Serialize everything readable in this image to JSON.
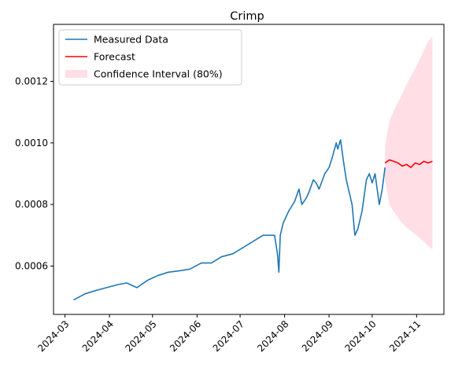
{
  "chart_data": {
    "type": "line",
    "title": "Crimp",
    "xlabel": "",
    "ylabel": "",
    "x_axis": {
      "type": "date",
      "range": [
        "2024-02-22",
        "2024-11-20"
      ],
      "ticks": [
        "2024-03",
        "2024-04",
        "2024-05",
        "2024-06",
        "2024-07",
        "2024-08",
        "2024-09",
        "2024-10",
        "2024-11"
      ]
    },
    "y_axis": {
      "range": [
        0.000443,
        0.001385
      ],
      "ticks": [
        0.0006,
        0.0008,
        0.001,
        0.0012
      ],
      "tick_labels": [
        "0.0006",
        "0.0008",
        "0.0010",
        "0.0012"
      ]
    },
    "grid": false,
    "legend": {
      "placement": "top-left",
      "entries": [
        "Measured Data",
        "Forecast",
        "Confidence Interval (80%)"
      ]
    },
    "colors": {
      "measured": "#1f77b4",
      "forecast": "#ff0000",
      "confidence": "#ffc0cb"
    },
    "series": [
      {
        "name": "Measured Data",
        "x": [
          "2024-03-07",
          "2024-03-15",
          "2024-03-22",
          "2024-03-30",
          "2024-04-07",
          "2024-04-13",
          "2024-04-20",
          "2024-04-28",
          "2024-05-05",
          "2024-05-12",
          "2024-05-20",
          "2024-05-27",
          "2024-06-04",
          "2024-06-11",
          "2024-06-18",
          "2024-06-26",
          "2024-07-03",
          "2024-07-10",
          "2024-07-17",
          "2024-07-25",
          "2024-07-27",
          "2024-07-28",
          "2024-07-29",
          "2024-07-31",
          "2024-08-04",
          "2024-08-08",
          "2024-08-11",
          "2024-08-13",
          "2024-08-16",
          "2024-08-18",
          "2024-08-21",
          "2024-08-23",
          "2024-08-25",
          "2024-08-29",
          "2024-09-01",
          "2024-09-03",
          "2024-09-06",
          "2024-09-07",
          "2024-09-09",
          "2024-09-11",
          "2024-09-13",
          "2024-09-17",
          "2024-09-19",
          "2024-09-21",
          "2024-09-24",
          "2024-09-27",
          "2024-09-29",
          "2024-10-01",
          "2024-10-03",
          "2024-10-06",
          "2024-10-08",
          "2024-10-10"
        ],
        "y": [
          0.00049,
          0.00051,
          0.00052,
          0.00053,
          0.00054,
          0.000545,
          0.00053,
          0.000555,
          0.00057,
          0.00058,
          0.000585,
          0.00059,
          0.00061,
          0.00061,
          0.00063,
          0.00064,
          0.00066,
          0.00068,
          0.0007,
          0.0007,
          0.00064,
          0.00058,
          0.0007,
          0.00074,
          0.00078,
          0.00081,
          0.00085,
          0.0008,
          0.00082,
          0.00084,
          0.00088,
          0.00087,
          0.00085,
          0.0009,
          0.00092,
          0.00095,
          0.001,
          0.00098,
          0.00101,
          0.00094,
          0.00088,
          0.0008,
          0.0007,
          0.00072,
          0.00078,
          0.00088,
          0.0009,
          0.00087,
          0.0009,
          0.0008,
          0.00085,
          0.00092
        ]
      },
      {
        "name": "Forecast",
        "x": [
          "2024-10-10",
          "2024-10-13",
          "2024-10-16",
          "2024-10-19",
          "2024-10-22",
          "2024-10-25",
          "2024-10-28",
          "2024-10-31",
          "2024-11-03",
          "2024-11-06",
          "2024-11-09",
          "2024-11-12"
        ],
        "y": [
          0.000935,
          0.000945,
          0.00094,
          0.000935,
          0.000925,
          0.00093,
          0.00092,
          0.000935,
          0.00093,
          0.00094,
          0.000935,
          0.00094
        ]
      }
    ],
    "confidence_interval": {
      "name": "Confidence Interval (80%)",
      "x": [
        "2024-10-10",
        "2024-10-13",
        "2024-10-17",
        "2024-10-21",
        "2024-10-25",
        "2024-10-29",
        "2024-11-02",
        "2024-11-06",
        "2024-11-09",
        "2024-11-12"
      ],
      "lower": [
        0.00088,
        0.0008,
        0.00077,
        0.000745,
        0.000725,
        0.00071,
        0.000695,
        0.00068,
        0.000665,
        0.000655
      ],
      "upper": [
        0.00099,
        0.00107,
        0.001115,
        0.00115,
        0.00119,
        0.001225,
        0.00126,
        0.0013,
        0.00133,
        0.001345
      ]
    }
  }
}
